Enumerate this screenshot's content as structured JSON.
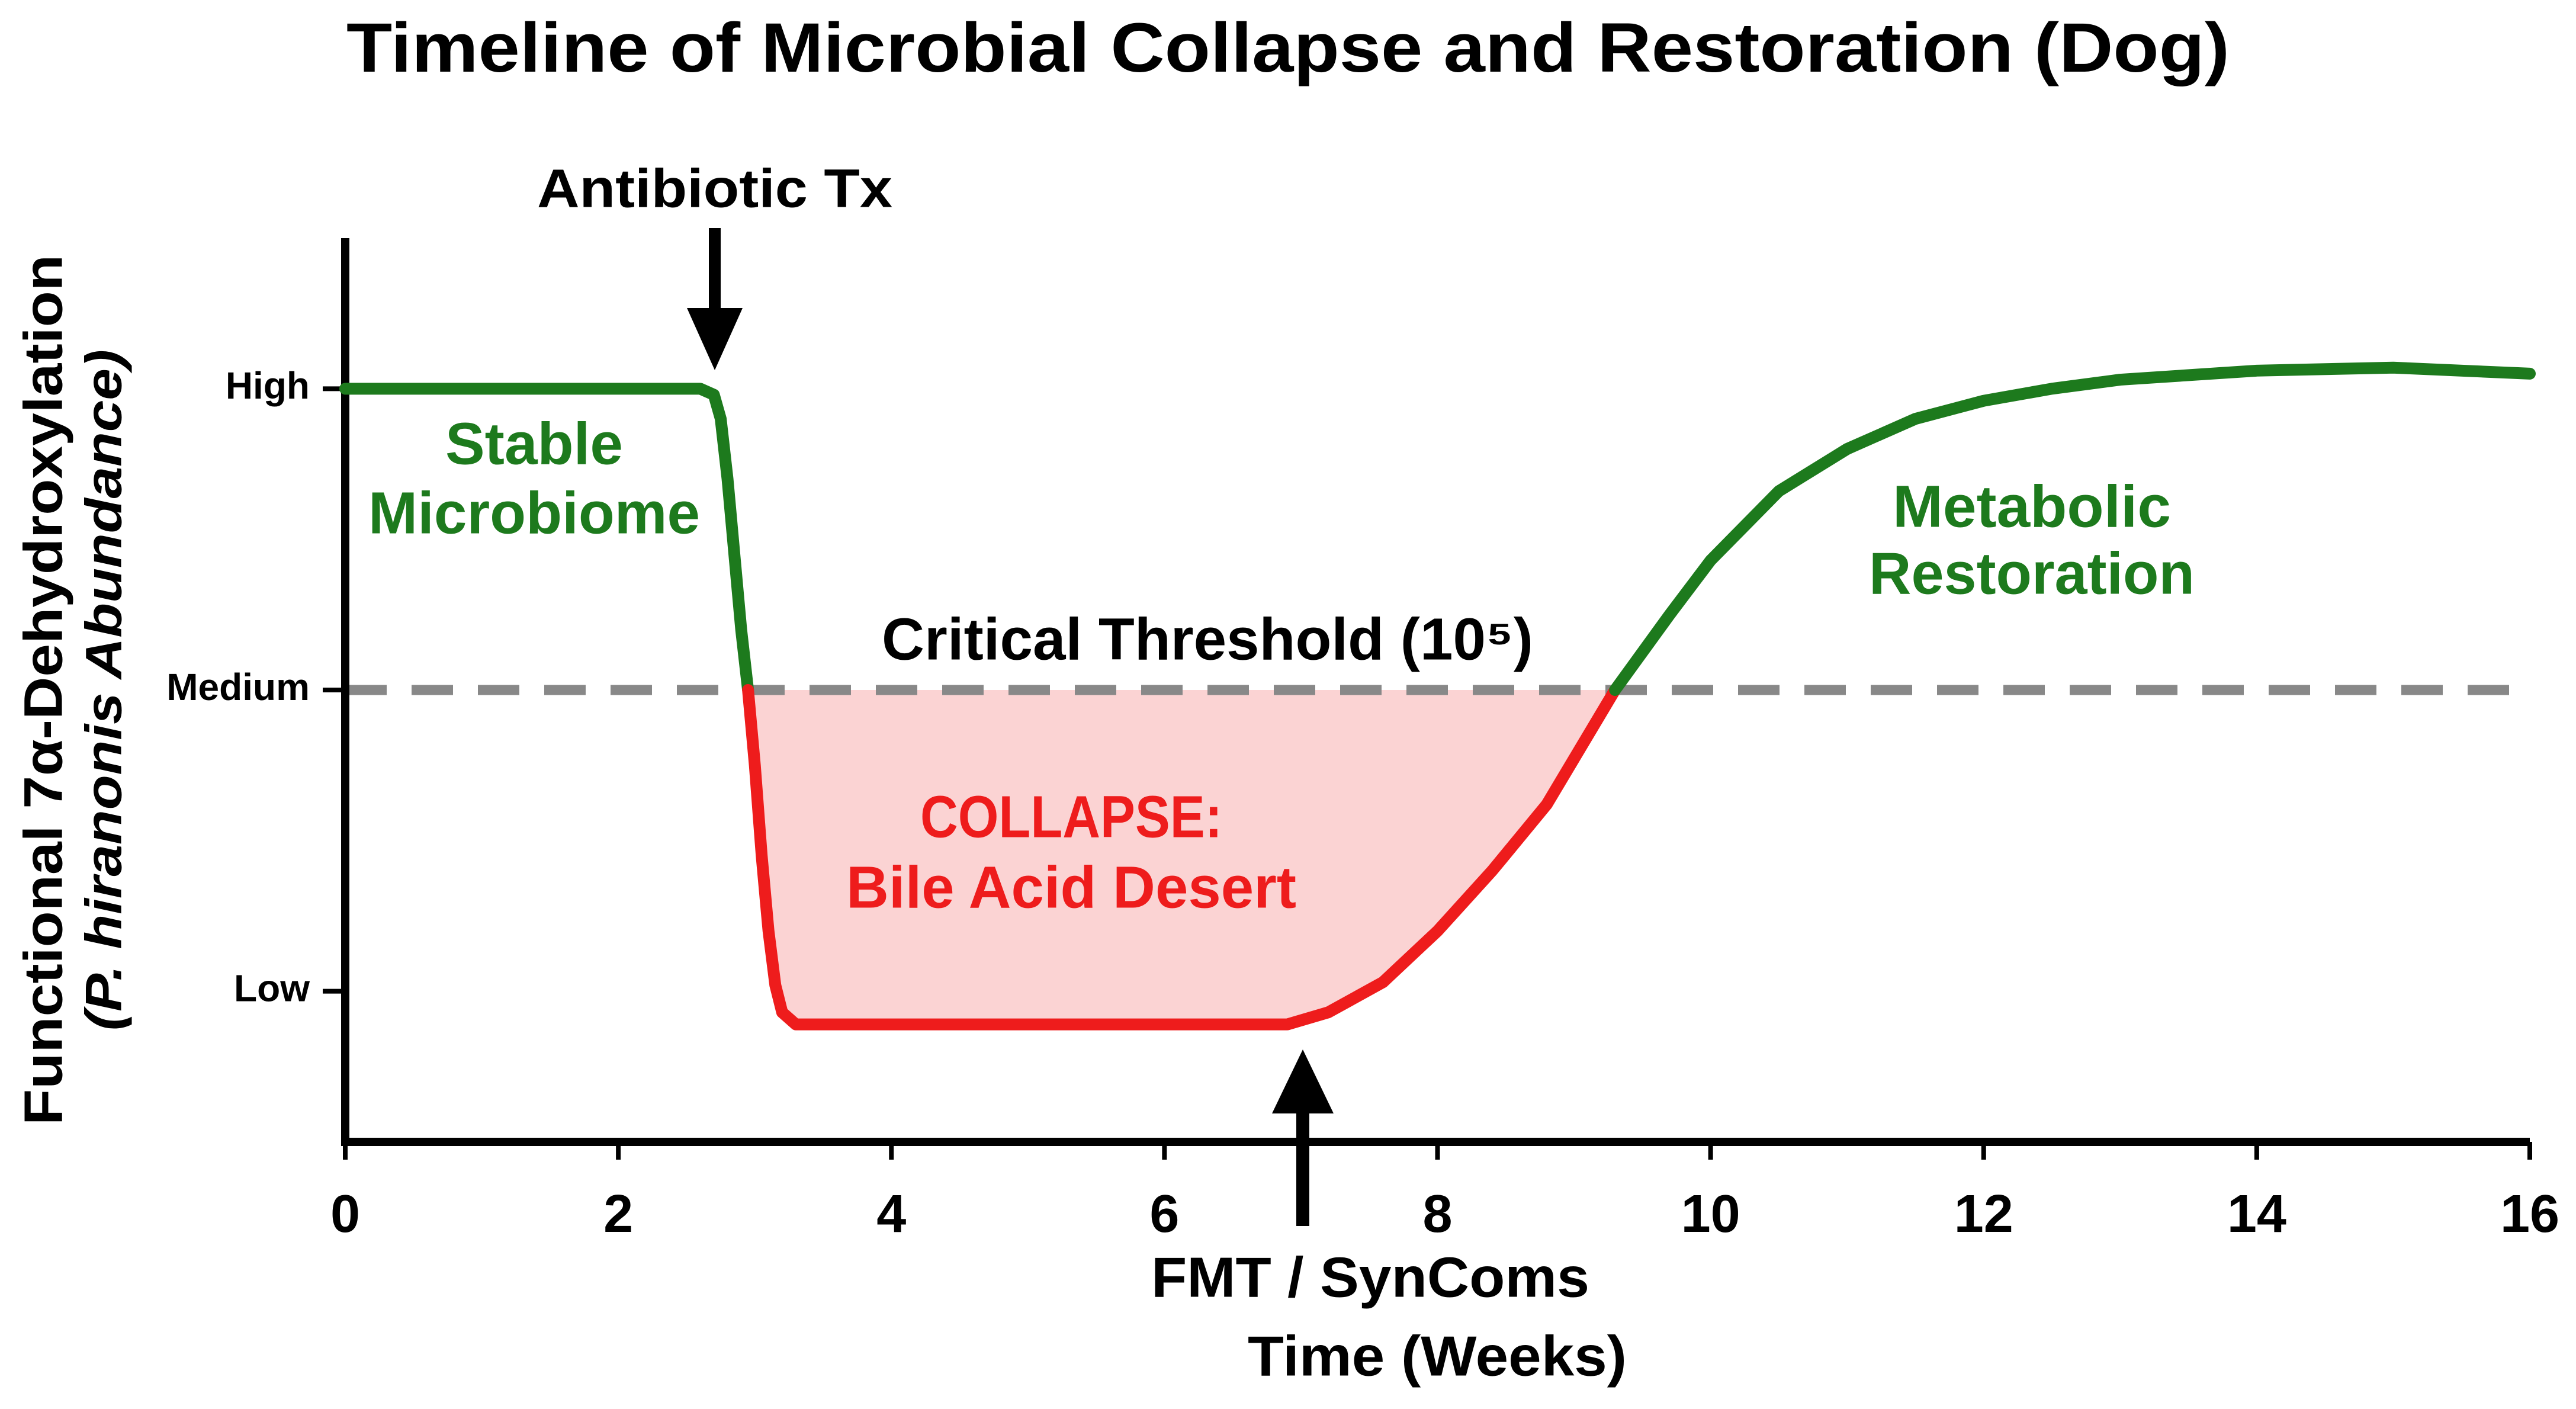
{
  "chart_data": {
    "type": "line",
    "title": "Timeline of  Microbial Collapse and Restoration (Dog)",
    "xlabel": "Time (Weeks)",
    "ylabel": [
      "Functional 7α-Dehydroxylation",
      "(P. hiranonis Abundance)"
    ],
    "xlim": [
      0,
      16
    ],
    "xticks": [
      0,
      2,
      4,
      6,
      8,
      10,
      12,
      14,
      16
    ],
    "ylim": [
      0.5,
      3.5
    ],
    "yticks": [
      {
        "value": 1,
        "label": "Low"
      },
      {
        "value": 2,
        "label": "Medium"
      },
      {
        "value": 3,
        "label": "High"
      }
    ],
    "grid": false,
    "threshold": {
      "value": 2,
      "label": "Critical Threshold (10⁵)",
      "color": "#888888"
    },
    "fill_color": "#fbd3d3",
    "series": [
      {
        "color": "#1d7a1d",
        "x": [
          0,
          1,
          2,
          2.6,
          2.7,
          2.75,
          2.8,
          2.85,
          2.9,
          2.95
        ],
        "values": [
          3,
          3,
          3,
          3,
          2.98,
          2.9,
          2.7,
          2.45,
          2.2,
          2.0
        ]
      },
      {
        "color": "#ee1c1c",
        "fill": true,
        "x": [
          2.95,
          3.0,
          3.05,
          3.1,
          3.15,
          3.2,
          3.3,
          4,
          5,
          6,
          6.9,
          7.2,
          7.6,
          8.0,
          8.4,
          8.8,
          9.3
        ],
        "values": [
          2.0,
          1.75,
          1.45,
          1.2,
          1.02,
          0.93,
          0.89,
          0.89,
          0.89,
          0.89,
          0.89,
          0.93,
          1.03,
          1.2,
          1.4,
          1.62,
          2.0
        ]
      },
      {
        "color": "#1d7a1d",
        "x": [
          9.3,
          9.7,
          10,
          10.5,
          11,
          11.5,
          12,
          12.5,
          13,
          14,
          15,
          16
        ],
        "values": [
          2.0,
          2.25,
          2.43,
          2.66,
          2.8,
          2.9,
          2.96,
          3.0,
          3.03,
          3.06,
          3.07,
          3.05
        ]
      }
    ],
    "annotations": {
      "antibiotic": "Antibiotic Tx",
      "fmt": "FMT / SynComs",
      "stable": [
        "Stable",
        "Microbiome"
      ],
      "restoration": [
        "Metabolic",
        "Restoration"
      ],
      "collapse": [
        "COLLAPSE:",
        "Bile Acid Desert"
      ]
    }
  }
}
